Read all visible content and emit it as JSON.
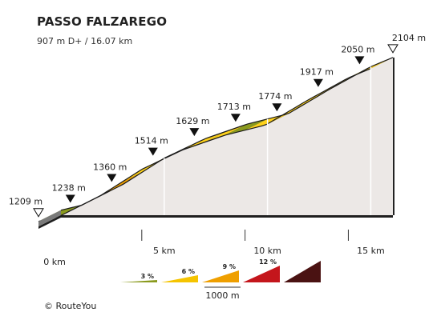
{
  "title": "PASSO FALZAREGO",
  "subtitle": "907 m D+ / 16.07 km",
  "credit": "© RouteYou",
  "chart_data": {
    "type": "area",
    "title": "PASSO FALZAREGO",
    "subtitle": "907 m D+ / 16.07 km",
    "x_unit": "km",
    "y_unit": "m",
    "start": {
      "km": 0,
      "elevation": 1209,
      "label": "1209 m"
    },
    "end": {
      "km": 16.07,
      "elevation": 2104,
      "label": "2104 m"
    },
    "km_markers": [
      {
        "km": 0,
        "label": "0 km"
      },
      {
        "km": 5,
        "label": "5 km"
      },
      {
        "km": 10,
        "label": "10 km"
      },
      {
        "km": 15,
        "label": "15 km"
      }
    ],
    "elevation_markers": [
      {
        "km": 1,
        "elevation": 1238,
        "label": "1238 m"
      },
      {
        "km": 3,
        "elevation": 1360,
        "label": "1360 m"
      },
      {
        "km": 5,
        "elevation": 1514,
        "label": "1514 m"
      },
      {
        "km": 7,
        "elevation": 1629,
        "label": "1629 m"
      },
      {
        "km": 9,
        "elevation": 1713,
        "label": "1713 m"
      },
      {
        "km": 11,
        "elevation": 1774,
        "label": "1774 m"
      },
      {
        "km": 13,
        "elevation": 1917,
        "label": "1917 m"
      },
      {
        "km": 15,
        "elevation": 2050,
        "label": "2050 m"
      }
    ],
    "segments": [
      {
        "from_km": 0,
        "to_km": 1,
        "gradient_class": 3
      },
      {
        "from_km": 1,
        "to_km": 2,
        "gradient_class": 6
      },
      {
        "from_km": 2,
        "to_km": 3,
        "gradient_class": 3
      },
      {
        "from_km": 3,
        "to_km": 4,
        "gradient_class": 9
      },
      {
        "from_km": 4,
        "to_km": 5,
        "gradient_class": 6
      },
      {
        "from_km": 5,
        "to_km": 6,
        "gradient_class": 6
      },
      {
        "from_km": 6,
        "to_km": 7,
        "gradient_class": 6
      },
      {
        "from_km": 7,
        "to_km": 8,
        "gradient_class": 6
      },
      {
        "from_km": 8,
        "to_km": 9,
        "gradient_class": 6
      },
      {
        "from_km": 9,
        "to_km": 10,
        "gradient_class": 3
      },
      {
        "from_km": 10,
        "to_km": 11,
        "gradient_class": 6
      },
      {
        "from_km": 11,
        "to_km": 12,
        "gradient_class": 6
      },
      {
        "from_km": 12,
        "to_km": 13,
        "gradient_class": 6
      },
      {
        "from_km": 13,
        "to_km": 14,
        "gradient_class": 6
      },
      {
        "from_km": 14,
        "to_km": 15,
        "gradient_class": 6
      },
      {
        "from_km": 15,
        "to_km": 16.07,
        "gradient_class": 6
      }
    ],
    "legend": {
      "scale_label": "1000 m",
      "items": [
        {
          "label": "3 %",
          "color": "#8a9a1e"
        },
        {
          "label": "6 %",
          "color": "#f5c400"
        },
        {
          "label": "9 %",
          "color": "#ef9f00"
        },
        {
          "label": "12 %",
          "color": "#c4161c"
        },
        {
          "label": "",
          "color": "#4a1212"
        }
      ]
    },
    "colors": {
      "3": {
        "top": "#8a9a1e",
        "side": "#6d7a14"
      },
      "6": {
        "top": "#ffd21a",
        "side": "#f5a800"
      },
      "9": {
        "top": "#ef9f00",
        "side": "#e28900"
      },
      "12": {
        "top": "#c4161c",
        "side": "#a01014"
      },
      "wall": "#ece8e6",
      "edge": "#1a1a1a"
    }
  }
}
